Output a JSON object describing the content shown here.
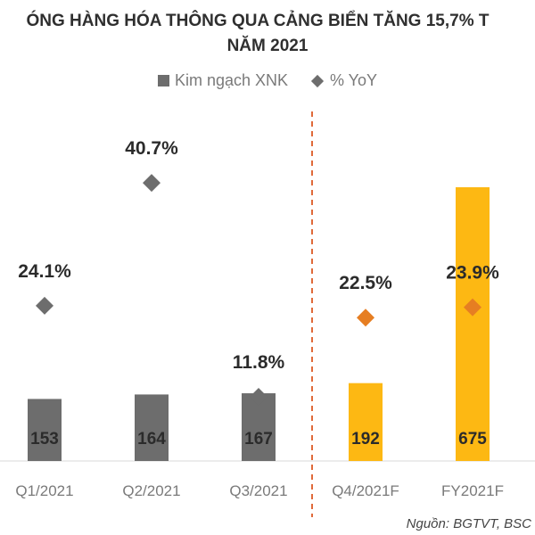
{
  "title": {
    "line1": "ÓNG HÀNG HÓA THÔNG QUA CẢNG BIỂN TĂNG 15,7% T",
    "line2": "NĂM 2021"
  },
  "legend": {
    "bar_label": "Kim ngạch XNK",
    "diamond_label": "% YoY"
  },
  "source": "Nguồn: BGTVT, BSC",
  "chart_data": {
    "type": "bar",
    "categories": [
      "Q1/2021",
      "Q2/2021",
      "Q3/2021",
      "Q4/2021F",
      "FY2021F"
    ],
    "series": [
      {
        "name": "Kim ngạch XNK",
        "type": "bar",
        "values": [
          153,
          164,
          167,
          192,
          675
        ],
        "value_labels": [
          "153",
          "164",
          "167",
          "192",
          "675"
        ],
        "colors": [
          "#6d6d6d",
          "#6d6d6d",
          "#6d6d6d",
          "#fdb813",
          "#fdb813"
        ]
      },
      {
        "name": "% YoY",
        "type": "scatter",
        "marker": "diamond",
        "values": [
          24.1,
          40.7,
          11.8,
          22.5,
          23.9
        ],
        "value_labels": [
          "24.1%",
          "40.7%",
          "11.8%",
          "22.5%",
          "23.9%"
        ],
        "colors": [
          "#6d6d6d",
          "#6d6d6d",
          "#6d6d6d",
          "#e67e22",
          "#e67e22"
        ]
      }
    ],
    "divider_after_category": 2,
    "divider_color": "#e06a3a",
    "label_color_dark": "#2b2b2b"
  }
}
